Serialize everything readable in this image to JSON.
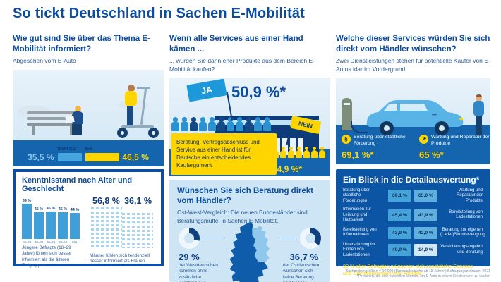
{
  "title": "So tickt Deutschland in Sachen E-Mobilität",
  "colors": {
    "navy": "#0d4da1",
    "blue": "#3f9fd8",
    "yellow": "#ffd500",
    "sky": "#d8eaf6",
    "ground": "#1465ad",
    "panel_light": "#cde5f4",
    "panel_dark": "#0c55a4"
  },
  "left": {
    "heading": "Wie gut sind Sie über das Thema E-Mobilität informiert?",
    "subheading": "Abgesehen vom E-Auto",
    "informed": {
      "bad_value": "35,5 %",
      "bad_label": "Nicht Gut",
      "good_label": "Gut",
      "good_value": "46,5 %"
    },
    "card": {
      "title": "Kenntnisstand nach Alter und Geschlecht",
      "age_values": [
        "59 %",
        "45 %",
        "46 %",
        "45 %",
        "44 %"
      ],
      "age_labels": [
        "18–29",
        "30–39",
        "40–49",
        "50–64",
        "65+"
      ],
      "age_caption": "Jüngere Befragte (18–29 Jahre) fühlen sich besser informiert als die älteren Zielgruppen.",
      "male_value": "56,8 %",
      "female_value": "36,1 %",
      "gender_caption": "Männer fühlen sich tendenziell besser informiert als Frauen."
    }
  },
  "middle": {
    "heading": "Wenn alle Services aus einer Hand kämen ...",
    "subheading": "... würden Sie dann eher Produkte aus dem Bereich E-Mobilität kaufen?",
    "ja_label": "JA",
    "ja_value": "50,9 %*",
    "nein_label": "NEIN",
    "nein_value": "24,9 %*",
    "callout": "Beratung, Vertragsabschluss und Service aus einer Hand ist für Deutsche ein entscheidendes Kaufargument",
    "advice": {
      "title": "Wünschen Sie sich Beratung direkt vom Händler?",
      "subtitle": "Ost-West-Vergleich: Die neuen Bundesländer sind Beratungsmuffel in Sachen E-Mobilität.",
      "west_value": "29 %",
      "west_pct": 29,
      "west_caption": "der Westdeutschen kommen ohne zusätzliche Beratung aus.",
      "east_value": "36,7 %",
      "east_pct": 36.7,
      "east_caption": "der Ostdeutschen wünschen sich keine Beratung und Service"
    }
  },
  "right": {
    "heading": "Welche dieser Services würden Sie sich direkt vom Händler wünschen?",
    "subheading": "Zwei Dienstleistungen stehen für potentielle Käufer von E-Autos klar im Vordergrund.",
    "service1_label": "Beratung über staatliche Förderung",
    "service1_value": "69,1 %*",
    "service2_label": "Wartung und Reparatur der Produkte",
    "service2_value": "65 %*",
    "detail": {
      "title": "Ein Blick in die Detailauswertung*",
      "rows": [
        {
          "left_label": "Beratung über staatliche Förderungen",
          "left_value": "69,1 %",
          "right_value": "65,0 %",
          "right_label": "Wartung und Reparatur der Produkte"
        },
        {
          "left_label": "Information zur Leistung und Haltbarkeit",
          "left_value": "45,4 %",
          "right_value": "43,9 %",
          "right_label": "Bereitstellung von Ladestationen"
        },
        {
          "left_label": "Bereitstellung von Informationen",
          "left_value": "43,9 %",
          "right_value": "42,0 %",
          "right_label": "Beratung zur eigenen (Lade-)Stromerzeugung"
        },
        {
          "left_label": "Unterstützung im Finden von Ladestationen",
          "left_value": "40,9 %",
          "right_value": "14,9 %",
          "right_label": "Versicherungsangebot und Beratung"
        }
      ],
      "footer": "90 % aller Befragten wünschen sich zusätzliche Services und Dienstleistungen vom Händler."
    }
  },
  "footnote_line1": "Stichprobengröße n = 10.000 (Bundesdeutsche ab 18 Jahren) Befragungszeitraum: 2021",
  "footnote_line2": "*Personen, die sich vorstellen können, ein E-Auto in einem Elektromarkt zu kaufen",
  "chart_data": [
    {
      "type": "bar",
      "title": "Wie gut sind Sie über das Thema E-Mobilität informiert? (abgesehen vom E-Auto)",
      "categories": [
        "Nicht Gut",
        "Gut"
      ],
      "values": [
        35.5,
        46.5
      ],
      "unit": "%"
    },
    {
      "type": "bar",
      "title": "Kenntnisstand nach Alter",
      "categories": [
        "18–29",
        "30–39",
        "40–49",
        "50–64",
        "65+"
      ],
      "values": [
        59,
        45,
        46,
        45,
        44
      ],
      "unit": "%",
      "ylim": [
        0,
        60
      ]
    },
    {
      "type": "bar",
      "title": "Kenntnisstand nach Geschlecht",
      "categories": [
        "Männer",
        "Frauen"
      ],
      "values": [
        56.8,
        36.1
      ],
      "unit": "%"
    },
    {
      "type": "pie",
      "title": "Wenn alle Services aus einer Hand kämen – würden Sie dann eher Produkte aus dem Bereich E-Mobilität kaufen?",
      "categories": [
        "Ja",
        "Nein"
      ],
      "values": [
        50.9,
        24.9
      ],
      "unit": "%"
    },
    {
      "type": "pie",
      "title": "Wünschen sich keine Beratung und Service vom Händler (Ost-West-Vergleich)",
      "categories": [
        "Westdeutsche",
        "Ostdeutsche"
      ],
      "values": [
        29,
        36.7
      ],
      "unit": "%"
    },
    {
      "type": "bar",
      "title": "Welche dieser Services würden Sie sich direkt vom Händler wünschen?",
      "categories": [
        "Beratung über staatliche Förderung",
        "Wartung und Reparatur der Produkte"
      ],
      "values": [
        69.1,
        65
      ],
      "unit": "%"
    },
    {
      "type": "table",
      "title": "Ein Blick in die Detailauswertung*",
      "rows": [
        [
          "Beratung über staatliche Förderungen",
          69.1,
          65.0,
          "Wartung und Reparatur der Produkte"
        ],
        [
          "Information zur Leistung und Haltbarkeit",
          45.4,
          43.9,
          "Bereitstellung von Ladestationen"
        ],
        [
          "Bereitstellung von Informationen",
          43.9,
          42.0,
          "Beratung zur eigenen (Lade-)Stromerzeugung"
        ],
        [
          "Unterstützung im Finden von Ladestationen",
          40.9,
          14.9,
          "Versicherungsangebot und Beratung"
        ]
      ]
    }
  ]
}
